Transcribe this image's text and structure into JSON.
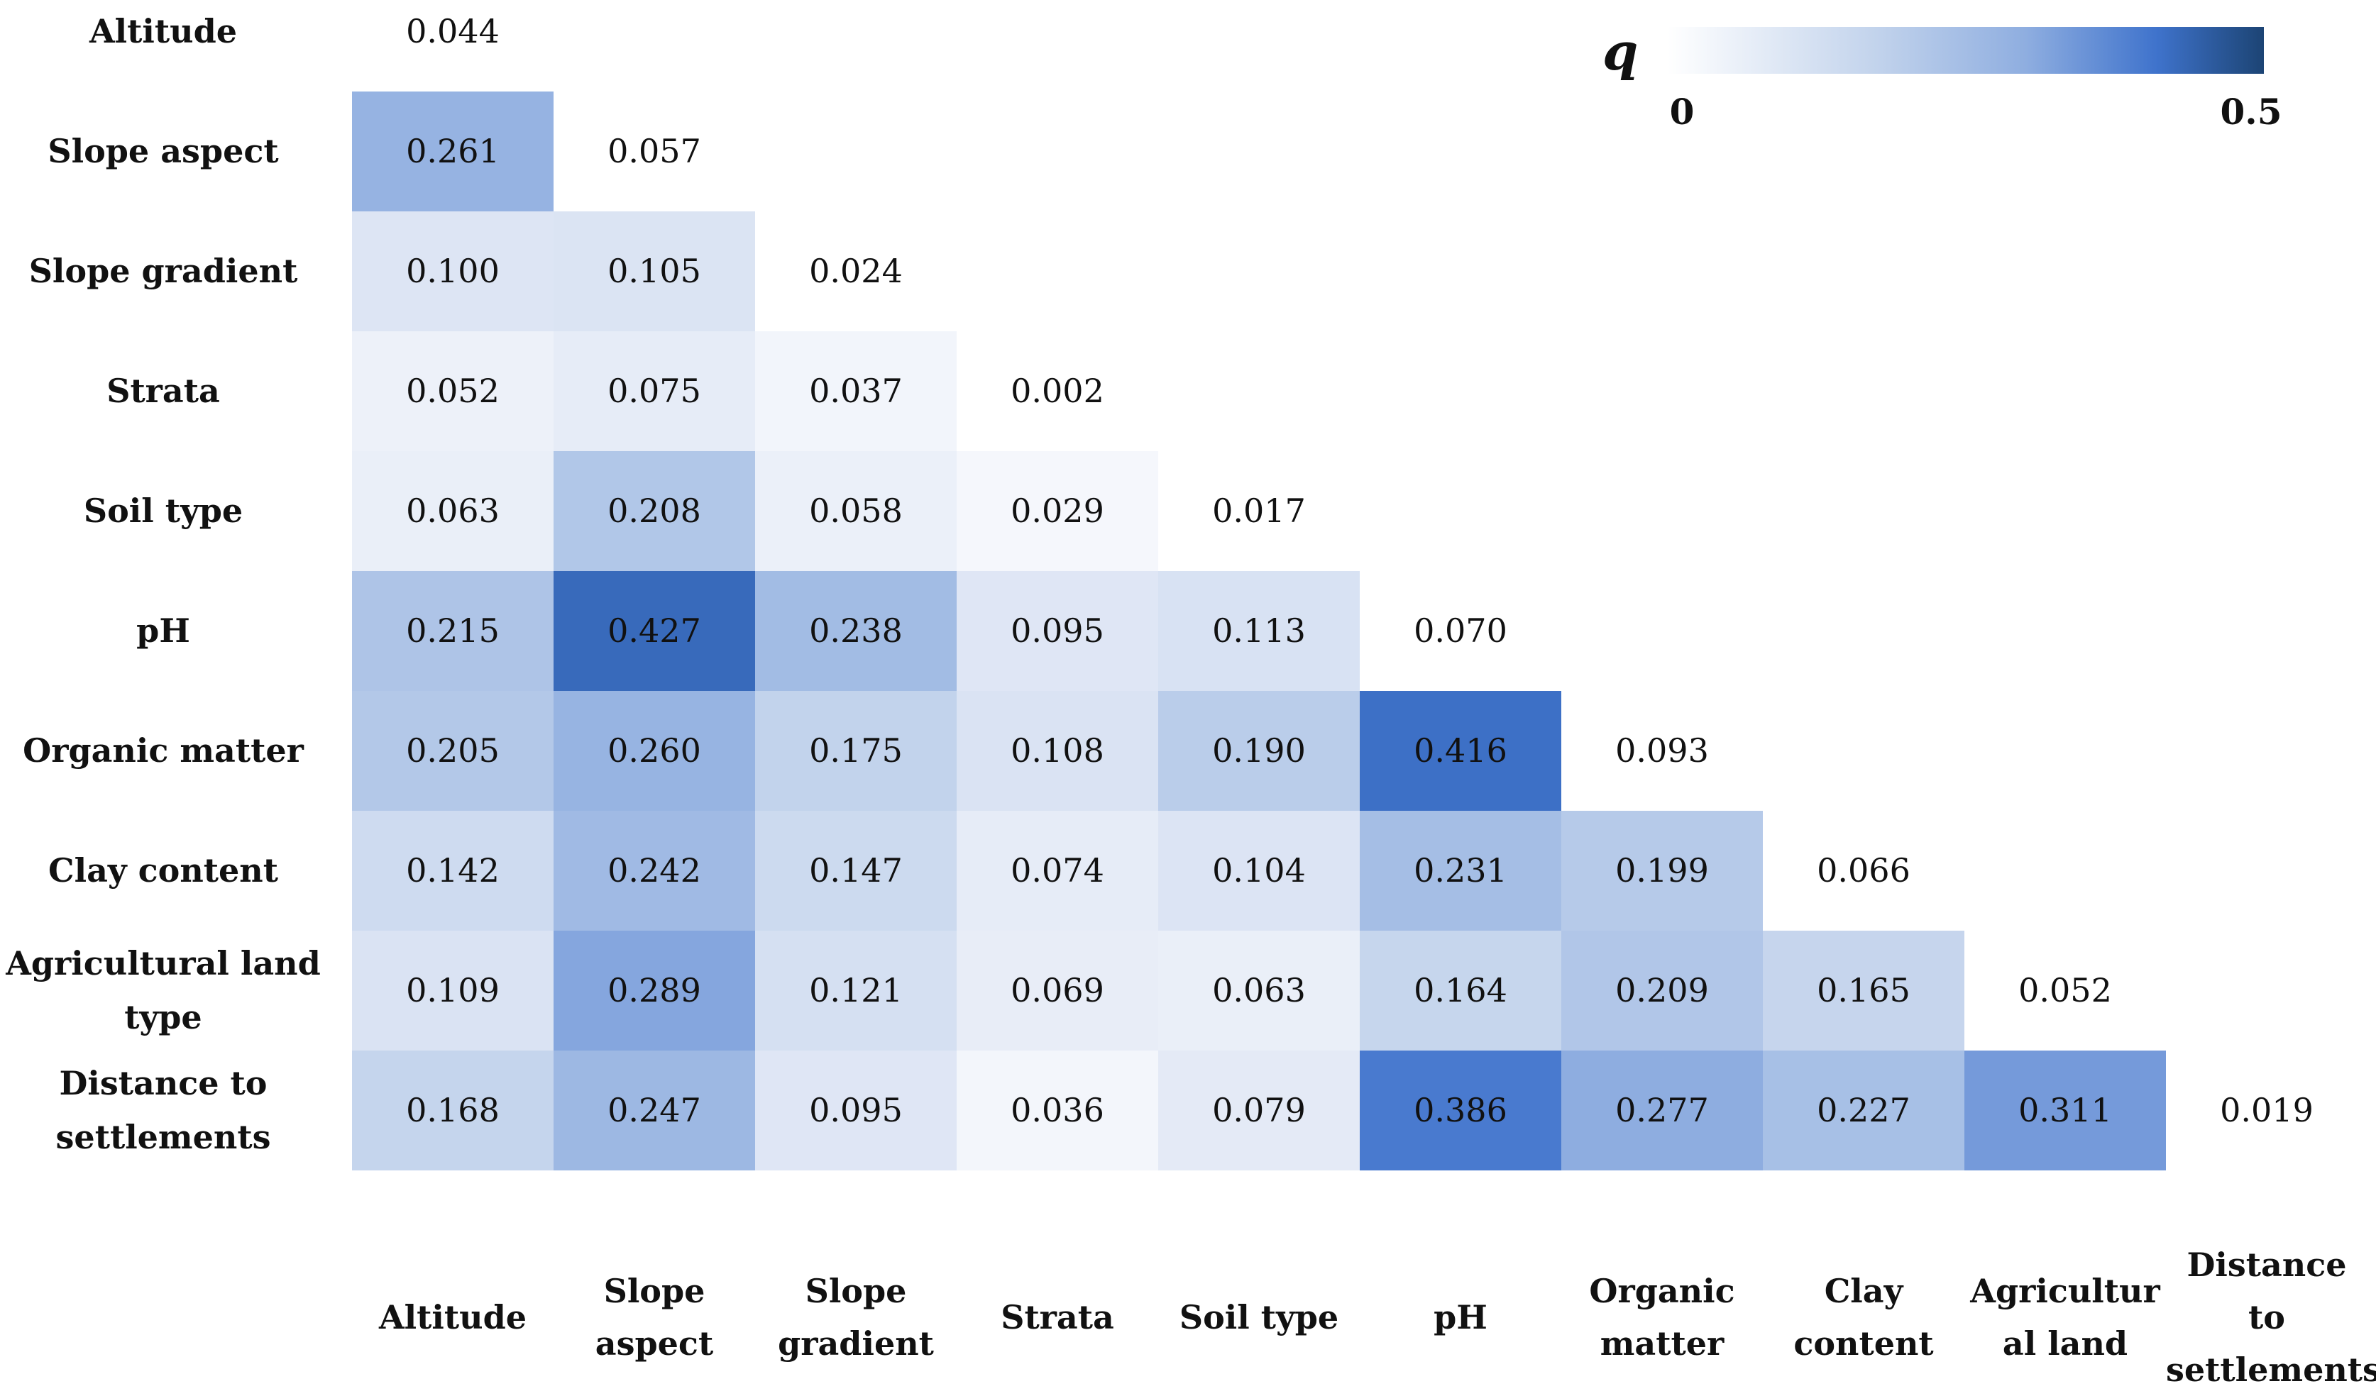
{
  "chart_data": {
    "type": "heatmap",
    "legend": {
      "symbol": "q",
      "min_label": "0",
      "max_label": "0.5",
      "range": [
        0,
        0.5
      ],
      "placement": "top-right"
    },
    "colors": {
      "low": "#ffffff",
      "mid_low": "#c2d3ec",
      "mid": "#8faee0",
      "high": "#3f73cc",
      "max": "#1c4474",
      "text": "#111111"
    },
    "row_labels": [
      [
        "Altitude"
      ],
      [
        "Slope aspect"
      ],
      [
        "Slope gradient"
      ],
      [
        "Strata"
      ],
      [
        "Soil type"
      ],
      [
        "pH"
      ],
      [
        "Organic matter"
      ],
      [
        "Clay content"
      ],
      [
        "Agricultural land",
        "type"
      ],
      [
        "Distance to",
        "settlements"
      ]
    ],
    "column_labels": [
      [
        "Altitude"
      ],
      [
        "Slope",
        "aspect"
      ],
      [
        "Slope",
        "gradient"
      ],
      [
        "Strata"
      ],
      [
        "Soil type"
      ],
      [
        "pH"
      ],
      [
        "Organic",
        "matter"
      ],
      [
        "Clay",
        "content"
      ],
      [
        "Agricultur",
        "al land"
      ],
      [
        "Distance to",
        "settlements"
      ]
    ],
    "values": [
      [
        "0.044"
      ],
      [
        "0.261",
        "0.057"
      ],
      [
        "0.100",
        "0.105",
        "0.024"
      ],
      [
        "0.052",
        "0.075",
        "0.037",
        "0.002"
      ],
      [
        "0.063",
        "0.208",
        "0.058",
        "0.029",
        "0.017"
      ],
      [
        "0.215",
        "0.427",
        "0.238",
        "0.095",
        "0.113",
        "0.070"
      ],
      [
        "0.205",
        "0.260",
        "0.175",
        "0.108",
        "0.190",
        "0.416",
        "0.093"
      ],
      [
        "0.142",
        "0.242",
        "0.147",
        "0.074",
        "0.104",
        "0.231",
        "0.199",
        "0.066"
      ],
      [
        "0.109",
        "0.289",
        "0.121",
        "0.069",
        "0.063",
        "0.164",
        "0.209",
        "0.165",
        "0.052"
      ],
      [
        "0.168",
        "0.247",
        "0.095",
        "0.036",
        "0.079",
        "0.386",
        "0.277",
        "0.227",
        "0.311",
        "0.019"
      ]
    ]
  }
}
